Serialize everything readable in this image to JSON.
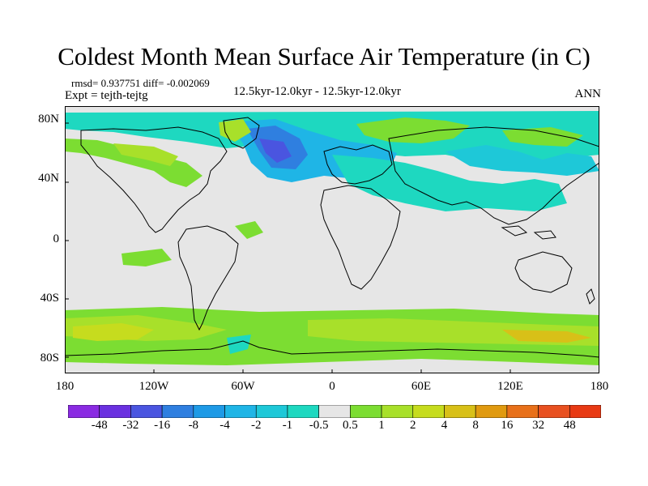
{
  "title": "Coldest Month Mean Surface Air Temperature (in C)",
  "stats_line": "rmsd= 0.937751 diff= -0.002069",
  "expt_line": "Expt = tejth-tejtg",
  "period_line": "12.5kyr-12.0kyr - 12.5kyr-12.0kyr",
  "season": "ANN",
  "lat_labels": [
    "80N",
    "40N",
    "0",
    "40S",
    "80S"
  ],
  "lon_labels": [
    "180",
    "120W",
    "60W",
    "0",
    "60E",
    "120E",
    "180"
  ],
  "colorbar": {
    "labels": [
      "-48",
      "-32",
      "-16",
      "-8",
      "-4",
      "-2",
      "-1",
      "-0.5",
      "0.5",
      "1",
      "2",
      "4",
      "8",
      "16",
      "32",
      "48"
    ],
    "colors": [
      "#8a2be2",
      "#6a30e0",
      "#4a55e0",
      "#2f7fe0",
      "#1e9ae6",
      "#1fb5e6",
      "#1ec8d8",
      "#1ed8c0",
      "#e6e6e6",
      "#7cdd32",
      "#a8e02a",
      "#c6dc1e",
      "#d8c018",
      "#e09a10",
      "#e8701a",
      "#e85020",
      "#e83a14"
    ]
  },
  "colors": {
    "land_outline": "#000000",
    "no_change": "#e6e6e6",
    "frame": "#000000"
  }
}
